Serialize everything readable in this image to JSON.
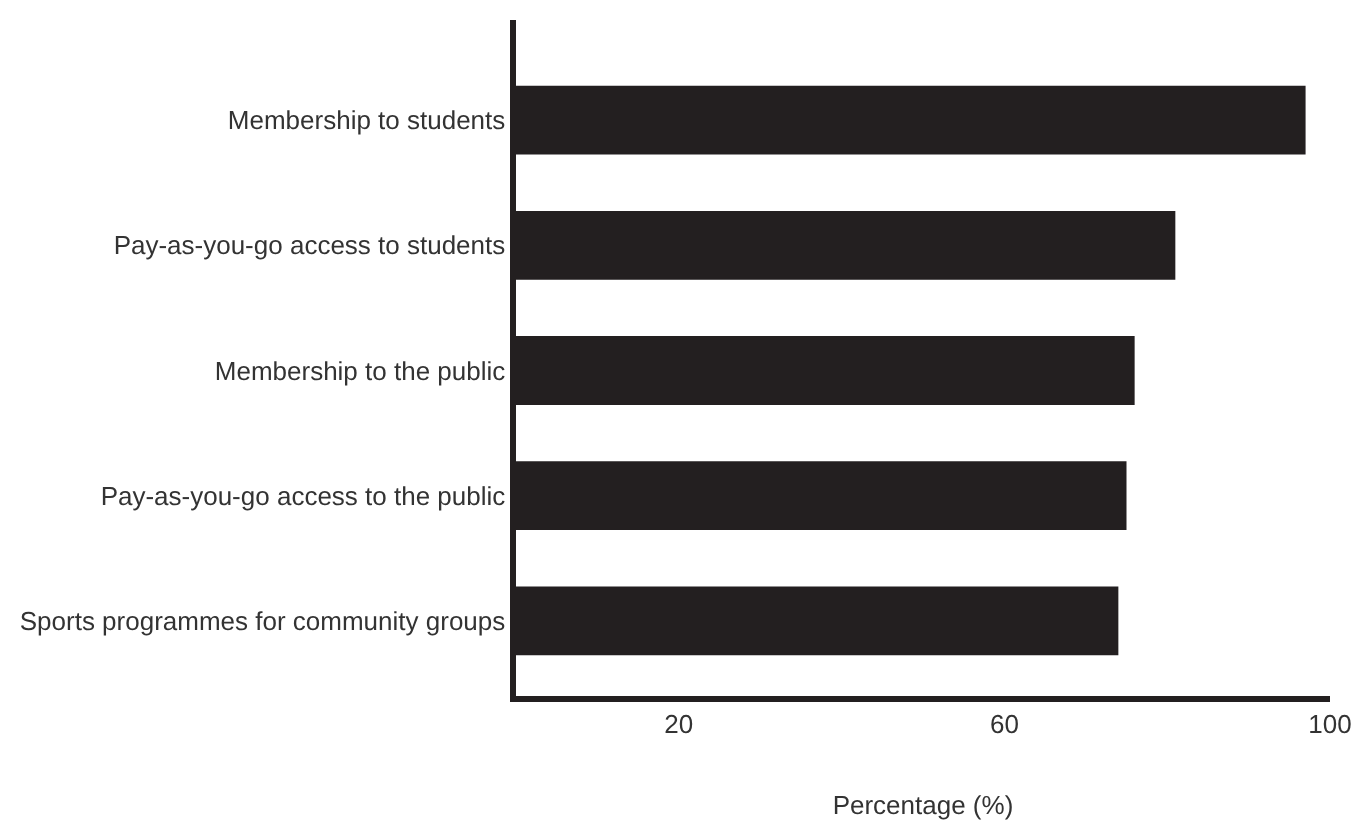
{
  "chart_data": {
    "type": "bar",
    "orientation": "horizontal",
    "categories": [
      "Membership to students",
      "Pay-as-you-go access to students",
      "Membership to the public",
      "Pay-as-you-go access to the public",
      "Sports programmes for community groups"
    ],
    "values": [
      97,
      81,
      76,
      75,
      74
    ],
    "color": "#231f20",
    "xlabel": "Percentage (%)",
    "xlim": [
      0,
      100
    ],
    "xticks": [
      20,
      60,
      100
    ]
  }
}
